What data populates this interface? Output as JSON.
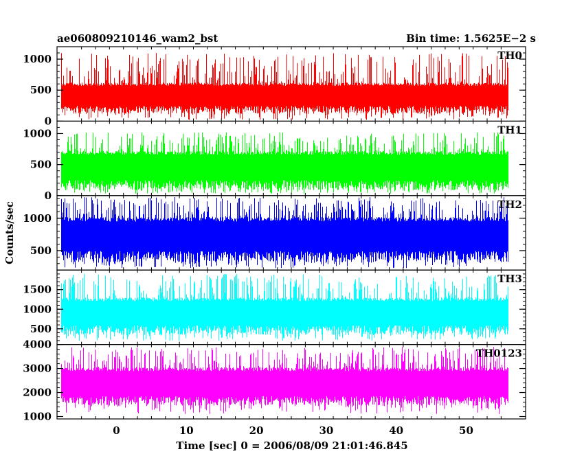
{
  "header": {
    "left": "ae060809210146_wam2_bst",
    "right": "Bin time: 1.5625E−2 s"
  },
  "chart_data": {
    "type": "line",
    "title": "ae060809210146_wam2_bst",
    "subtitle": "Bin time: 1.5625E−2 s",
    "xlabel": "Time [sec] 0 = 2006/08/09 21:01:46.845",
    "ylabel": "Counts/sec",
    "xlim": [
      -8.5,
      58.5
    ],
    "data_xrange": [
      -8.0,
      56.0
    ],
    "x_ticks": [
      0,
      10,
      20,
      30,
      40,
      50
    ],
    "grid": false,
    "panels": [
      {
        "name": "TH0",
        "color": "#ff0000",
        "ylim": [
          0,
          1200
        ],
        "y_ticks": [
          0,
          500,
          1000
        ],
        "typical_range": [
          120,
          620
        ],
        "spike_range": [
          20,
          1100
        ]
      },
      {
        "name": "TH1",
        "color": "#00ff00",
        "ylim": [
          0,
          1200
        ],
        "y_ticks": [
          0,
          500,
          1000
        ],
        "typical_range": [
          90,
          720
        ],
        "spike_range": [
          30,
          1020
        ]
      },
      {
        "name": "TH2",
        "color": "#0000ff",
        "ylim": [
          200,
          1350
        ],
        "y_ticks": [
          500,
          1000
        ],
        "typical_range": [
          320,
          1020
        ],
        "spike_range": [
          230,
          1330
        ]
      },
      {
        "name": "TH3",
        "color": "#00ffff",
        "ylim": [
          100,
          2000
        ],
        "y_ticks": [
          500,
          1000,
          1500
        ],
        "typical_range": [
          350,
          1300
        ],
        "spike_range": [
          200,
          1900
        ]
      },
      {
        "name": "TH0123",
        "color": "#ff00ff",
        "ylim": [
          900,
          4000
        ],
        "y_ticks": [
          1000,
          2000,
          3000,
          4000
        ],
        "typical_range": [
          1450,
          3050
        ],
        "spike_range": [
          1100,
          3900
        ]
      }
    ]
  }
}
